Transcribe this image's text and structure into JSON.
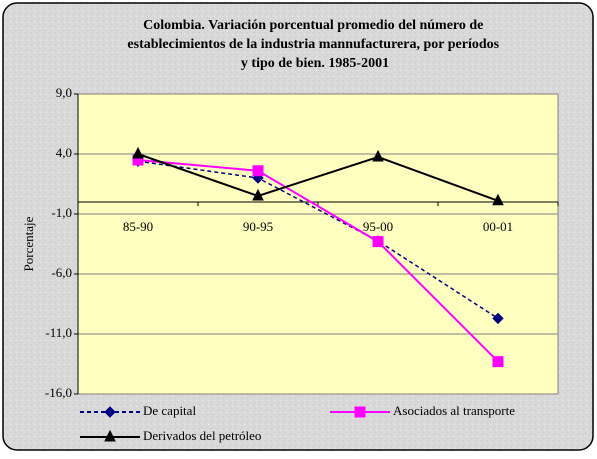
{
  "chart_data": {
    "type": "line",
    "title": [
      "Colombia. Variación porcentual promedio del número de",
      "establecimientos de la industria mannufacturera, por períodos",
      "y tipo de bien. 1985-2001"
    ],
    "y_label": "Porcentaje",
    "categories": [
      "85-90",
      "90-95",
      "95-00",
      "00-01"
    ],
    "series": [
      {
        "name": "De capital",
        "color": "#000080",
        "dash": true,
        "marker": "diamond",
        "values": [
          3.4,
          2.0,
          -3.25,
          -9.7
        ]
      },
      {
        "name": "Asociados al transporte",
        "color": "#ff00ff",
        "dash": false,
        "marker": "square",
        "values": [
          3.5,
          2.6,
          -3.3,
          -13.3
        ]
      },
      {
        "name": "Derivados del petróleo",
        "color": "#000000",
        "dash": false,
        "marker": "triangle",
        "values": [
          4.0,
          0.5,
          3.75,
          0.1
        ]
      }
    ],
    "ylim": [
      -16,
      9
    ],
    "yticks": [
      {
        "value": 9,
        "label": "9,0"
      },
      {
        "value": 4,
        "label": "4,0"
      },
      {
        "value": -1,
        "label": "-1,0"
      },
      {
        "value": -6,
        "label": "-6,0"
      },
      {
        "value": -11,
        "label": "-11,0"
      },
      {
        "value": -16,
        "label": "-16,0"
      }
    ],
    "grid": true,
    "legend": "bottom"
  }
}
